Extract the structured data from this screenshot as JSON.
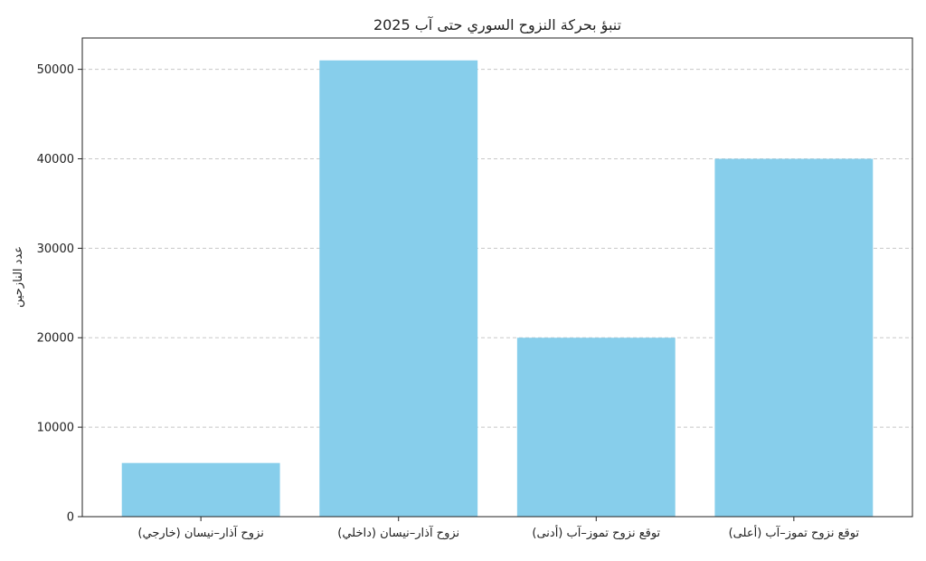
{
  "chart_data": {
    "type": "bar",
    "title": "تنبؤ بحركة النزوح السوري حتى آب 2025",
    "xlabel": "",
    "ylabel": "عدد النازحين",
    "categories": [
      "نزوح آذار–نيسان (خارجي)",
      "نزوح آذار–نيسان (داخلي)",
      "توقع نزوح تموز–آب (أدنى)",
      "توقع نزوح تموز–آب (أعلى)"
    ],
    "values": [
      6000,
      51000,
      20000,
      40000
    ],
    "ylim": [
      0,
      53500
    ],
    "yticks": [
      0,
      10000,
      20000,
      30000,
      40000,
      50000
    ],
    "grid": "y-dashed",
    "legend": "none",
    "colors": {
      "bar": "#87CEEB",
      "grid": "#c8c8c8",
      "axis": "#222222"
    }
  }
}
